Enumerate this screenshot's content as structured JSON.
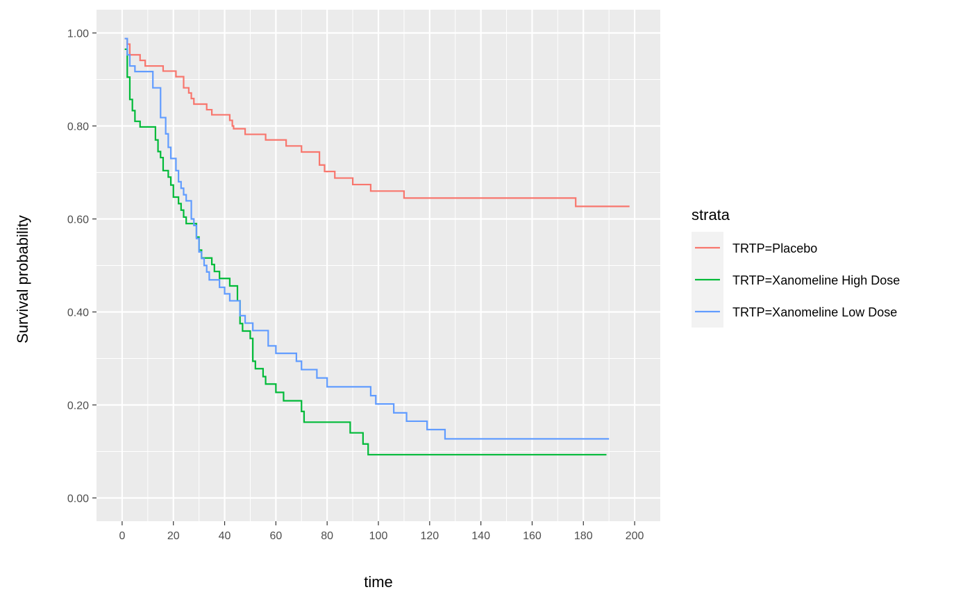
{
  "chart_data": {
    "type": "line",
    "xlabel": "time",
    "ylabel": "Survival probability",
    "xlim": [
      -10,
      210
    ],
    "ylim": [
      -0.05,
      1.05
    ],
    "x_ticks": [
      0,
      20,
      40,
      60,
      80,
      100,
      120,
      140,
      160,
      180,
      200
    ],
    "x_tick_labels": [
      "0",
      "20",
      "40",
      "60",
      "80",
      "100",
      "120",
      "140",
      "160",
      "180",
      "200"
    ],
    "y_ticks": [
      0,
      0.2,
      0.4,
      0.6,
      0.8,
      1.0
    ],
    "y_tick_labels": [
      "0.00",
      "0.20",
      "0.40",
      "0.60",
      "0.80",
      "1.00"
    ],
    "grid": true,
    "panel_background": "#ebebeb",
    "legend": {
      "title": "strata",
      "position": "right"
    },
    "series": [
      {
        "name": "TRTP=Placebo",
        "color": "#f8766d",
        "steps": [
          [
            1,
            0.988
          ],
          [
            2,
            0.976
          ],
          [
            3,
            0.953
          ],
          [
            7,
            0.941
          ],
          [
            9,
            0.929
          ],
          [
            16,
            0.918
          ],
          [
            21,
            0.906
          ],
          [
            24,
            0.882
          ],
          [
            26,
            0.871
          ],
          [
            27,
            0.859
          ],
          [
            28,
            0.847
          ],
          [
            33,
            0.835
          ],
          [
            35,
            0.824
          ],
          [
            42,
            0.812
          ],
          [
            43,
            0.8
          ],
          [
            43.5,
            0.794
          ],
          [
            48,
            0.782
          ],
          [
            56,
            0.77
          ],
          [
            64,
            0.757
          ],
          [
            70,
            0.744
          ],
          [
            77,
            0.716
          ],
          [
            79,
            0.702
          ],
          [
            83,
            0.688
          ],
          [
            90,
            0.674
          ],
          [
            97,
            0.66
          ],
          [
            110,
            0.645
          ],
          [
            177,
            0.627
          ],
          [
            198,
            0.627
          ]
        ]
      },
      {
        "name": "TRTP=Xanomeline High Dose",
        "color": "#00ba38",
        "steps": [
          [
            1,
            0.965
          ],
          [
            2,
            0.905
          ],
          [
            3,
            0.857
          ],
          [
            4,
            0.833
          ],
          [
            5,
            0.81
          ],
          [
            7,
            0.798
          ],
          [
            13,
            0.77
          ],
          [
            14,
            0.745
          ],
          [
            15,
            0.732
          ],
          [
            16,
            0.704
          ],
          [
            18,
            0.69
          ],
          [
            19,
            0.673
          ],
          [
            20,
            0.647
          ],
          [
            22,
            0.633
          ],
          [
            23,
            0.619
          ],
          [
            24,
            0.604
          ],
          [
            25,
            0.59
          ],
          [
            29,
            0.561
          ],
          [
            30,
            0.533
          ],
          [
            31,
            0.516
          ],
          [
            35,
            0.502
          ],
          [
            36,
            0.487
          ],
          [
            38,
            0.472
          ],
          [
            42,
            0.456
          ],
          [
            45,
            0.424
          ],
          [
            46,
            0.375
          ],
          [
            47,
            0.359
          ],
          [
            50,
            0.343
          ],
          [
            51,
            0.294
          ],
          [
            52,
            0.278
          ],
          [
            55,
            0.261
          ],
          [
            56,
            0.245
          ],
          [
            60,
            0.227
          ],
          [
            63,
            0.209
          ],
          [
            70,
            0.186
          ],
          [
            71,
            0.163
          ],
          [
            89,
            0.14
          ],
          [
            94,
            0.116
          ],
          [
            96,
            0.093
          ],
          [
            189,
            0.093
          ]
        ]
      },
      {
        "name": "TRTP=Xanomeline Low Dose",
        "color": "#619cff",
        "steps": [
          [
            1,
            0.988
          ],
          [
            2,
            0.953
          ],
          [
            3,
            0.929
          ],
          [
            5,
            0.917
          ],
          [
            12,
            0.882
          ],
          [
            15,
            0.818
          ],
          [
            17,
            0.783
          ],
          [
            18,
            0.754
          ],
          [
            19,
            0.73
          ],
          [
            21,
            0.704
          ],
          [
            22,
            0.68
          ],
          [
            23,
            0.666
          ],
          [
            24,
            0.652
          ],
          [
            25,
            0.639
          ],
          [
            27,
            0.6
          ],
          [
            28,
            0.586
          ],
          [
            29,
            0.558
          ],
          [
            30,
            0.529
          ],
          [
            31,
            0.515
          ],
          [
            32,
            0.5
          ],
          [
            33,
            0.486
          ],
          [
            34,
            0.469
          ],
          [
            38,
            0.453
          ],
          [
            40,
            0.439
          ],
          [
            42,
            0.424
          ],
          [
            46,
            0.392
          ],
          [
            48,
            0.376
          ],
          [
            51,
            0.36
          ],
          [
            57,
            0.327
          ],
          [
            60,
            0.311
          ],
          [
            68,
            0.294
          ],
          [
            70,
            0.276
          ],
          [
            76,
            0.258
          ],
          [
            80,
            0.239
          ],
          [
            97,
            0.22
          ],
          [
            99,
            0.202
          ],
          [
            106,
            0.183
          ],
          [
            111,
            0.165
          ],
          [
            119,
            0.147
          ],
          [
            126,
            0.127
          ],
          [
            190,
            0.127
          ]
        ]
      }
    ]
  }
}
